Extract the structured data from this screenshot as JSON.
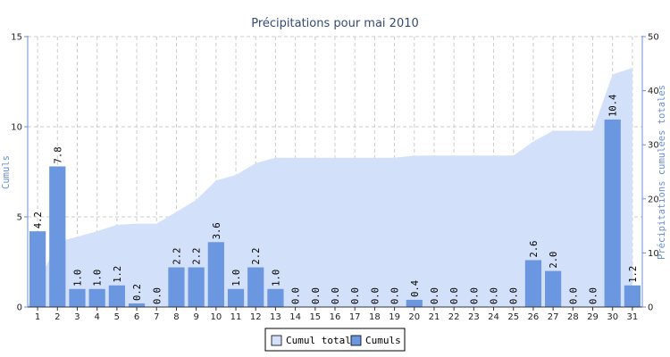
{
  "chart_data": {
    "type": "bar",
    "title": "Précipitations pour mai 2010",
    "xlabel": "",
    "ylabel": "Cumuls",
    "y2label": "Précipitations cumulées totales",
    "categories": [
      "1",
      "2",
      "3",
      "4",
      "5",
      "6",
      "7",
      "8",
      "9",
      "10",
      "11",
      "12",
      "13",
      "14",
      "15",
      "16",
      "17",
      "18",
      "19",
      "20",
      "21",
      "22",
      "23",
      "24",
      "25",
      "26",
      "27",
      "28",
      "29",
      "30",
      "31"
    ],
    "ylim": [
      0,
      15
    ],
    "y2lim": [
      0,
      50
    ],
    "yticks": [
      "0",
      "5",
      "10",
      "15"
    ],
    "y2ticks": [
      "0",
      "10",
      "20",
      "30",
      "40",
      "50"
    ],
    "grid": true,
    "legend_position": "bottom",
    "series": [
      {
        "name": "Cumul total",
        "type": "area",
        "axis": "right",
        "color": "#d3e0f9",
        "values": [
          4.2,
          12.0,
          13.0,
          14.0,
          15.2,
          15.4,
          15.4,
          17.6,
          19.8,
          23.4,
          24.4,
          26.6,
          27.6,
          27.6,
          27.6,
          27.6,
          27.6,
          27.6,
          27.6,
          28.0,
          28.0,
          28.0,
          28.0,
          28.0,
          28.0,
          30.6,
          32.6,
          32.6,
          32.6,
          43.0,
          44.2
        ]
      },
      {
        "name": "Cumuls",
        "type": "bar",
        "axis": "left",
        "color": "#6b96e0",
        "values": [
          4.2,
          7.8,
          1.0,
          1.0,
          1.2,
          0.2,
          0.0,
          2.2,
          2.2,
          3.6,
          1.0,
          2.2,
          1.0,
          0.0,
          0.0,
          0.0,
          0.0,
          0.0,
          0.0,
          0.4,
          0.0,
          0.0,
          0.0,
          0.0,
          0.0,
          2.6,
          2.0,
          0.0,
          0.0,
          10.4,
          1.2
        ],
        "labels": [
          "4.2",
          "7.8",
          "1.0",
          "1.0",
          "1.2",
          "0.2",
          "0.0",
          "2.2",
          "2.2",
          "3.6",
          "1.0",
          "2.2",
          "1.0",
          "0.0",
          "0.0",
          "0.0",
          "0.0",
          "0.0",
          "0.0",
          "0.4",
          "0.0",
          "0.0",
          "0.0",
          "0.0",
          "0.0",
          "2.6",
          "2.0",
          "0.0",
          "0.0",
          "10.4",
          "1.2"
        ]
      }
    ]
  }
}
